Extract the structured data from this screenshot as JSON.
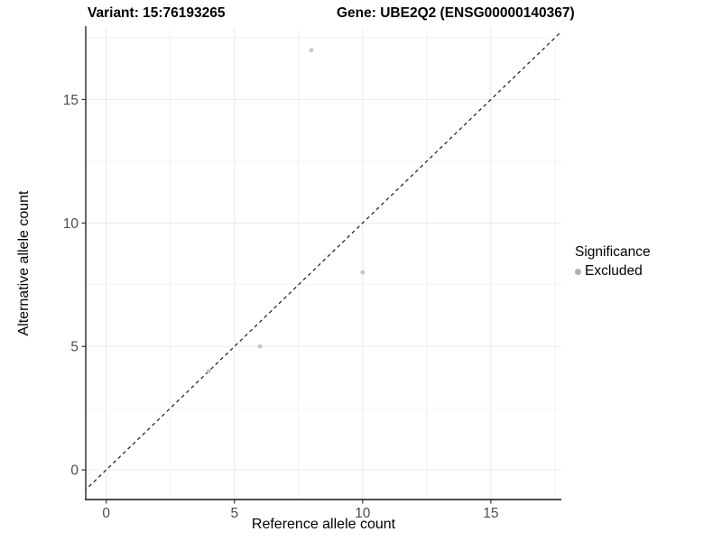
{
  "titles": {
    "variant": "Variant: 15:76193265",
    "gene": "Gene: UBE2Q2 (ENSG00000140367)"
  },
  "chart_data": {
    "type": "scatter",
    "xlabel": "Reference allele count",
    "ylabel": "Alternative allele count",
    "xlim": [
      -0.8,
      17.75
    ],
    "ylim": [
      -1.2,
      17.9
    ],
    "x_major_ticks": [
      0,
      5,
      10,
      15
    ],
    "y_major_ticks": [
      0,
      5,
      10,
      15
    ],
    "x_minor_ticks": [
      2.5,
      7.5,
      12.5,
      17.5
    ],
    "y_minor_ticks": [
      2.5,
      7.5,
      12.5,
      17.5
    ],
    "grid": true,
    "identity_line": {
      "style": "dashed",
      "slope": 1,
      "intercept": 0
    },
    "series": [
      {
        "name": "Excluded",
        "points": [
          {
            "x": 4,
            "y": 4
          },
          {
            "x": 6,
            "y": 5
          },
          {
            "x": 8,
            "y": 17
          },
          {
            "x": 10,
            "y": 8
          }
        ]
      }
    ],
    "legend": {
      "title": "Significance",
      "position": "right",
      "items": [
        {
          "label": "Excluded",
          "color": "#b0b0b0"
        }
      ]
    }
  },
  "colors": {
    "point": "#c6c6c6",
    "grid_major": "#e8e8e8",
    "grid_minor": "#f2f2f2",
    "axis_line": "#333333",
    "tick_mark": "#333333",
    "tick_label": "#4d4d4d",
    "identity_line": "#1a1a1a",
    "background": "#ffffff"
  }
}
